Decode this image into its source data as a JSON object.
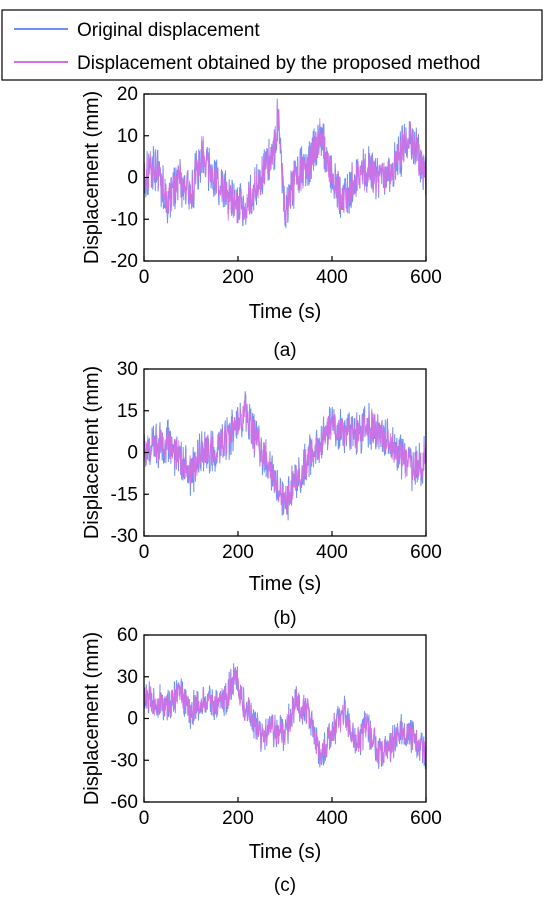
{
  "legend": {
    "entries": [
      {
        "label": "Original displacement",
        "color": "#6f8ff5"
      },
      {
        "label": "Displacement obtained by the proposed method",
        "color": "#d66fe3"
      }
    ]
  },
  "chart_data": [
    {
      "type": "line",
      "panel_label": "(a)",
      "xlabel": "Time (s)",
      "ylabel": "Displacement (mm)",
      "xlim": [
        0,
        600
      ],
      "ylim": [
        -20,
        20
      ],
      "xticks": [
        0,
        200,
        400,
        600
      ],
      "yticks": [
        -20,
        -10,
        0,
        10,
        20
      ],
      "grid": false,
      "x": [
        0,
        25,
        50,
        75,
        100,
        125,
        150,
        175,
        200,
        225,
        250,
        275,
        285,
        300,
        325,
        350,
        375,
        400,
        425,
        450,
        475,
        500,
        525,
        550,
        565,
        575,
        600
      ],
      "series": [
        {
          "name": "Original displacement",
          "color": "#6f8ff5",
          "noise": 5.0,
          "values": [
            0,
            3,
            -6,
            0,
            -4,
            6,
            0,
            -5,
            -8,
            -5,
            0,
            6,
            14,
            -8,
            0,
            3,
            10,
            0,
            -6,
            0,
            2,
            -1,
            0,
            7,
            10,
            8,
            0
          ]
        },
        {
          "name": "Displacement obtained by the proposed method",
          "color": "#d66fe3",
          "noise": 4.0,
          "values": [
            0,
            3,
            -6,
            0,
            -4,
            6,
            0,
            -5,
            -8,
            -5,
            0,
            6,
            14,
            -8,
            0,
            3,
            10,
            0,
            -6,
            0,
            2,
            -1,
            0,
            7,
            10,
            8,
            0
          ]
        }
      ]
    },
    {
      "type": "line",
      "panel_label": "(b)",
      "xlabel": "Time (s)",
      "ylabel": "Displacement (mm)",
      "xlim": [
        0,
        600
      ],
      "ylim": [
        -30,
        30
      ],
      "xticks": [
        0,
        200,
        400,
        600
      ],
      "yticks": [
        -30,
        -15,
        0,
        15,
        30
      ],
      "grid": false,
      "x": [
        0,
        25,
        50,
        75,
        100,
        125,
        150,
        175,
        200,
        215,
        225,
        250,
        275,
        290,
        300,
        325,
        350,
        375,
        400,
        425,
        450,
        475,
        500,
        525,
        550,
        575,
        600
      ],
      "series": [
        {
          "name": "Original displacement",
          "color": "#6f8ff5",
          "noise": 7.0,
          "values": [
            0,
            2,
            4,
            -2,
            -8,
            2,
            0,
            5,
            10,
            16,
            10,
            0,
            -8,
            -15,
            -18,
            -10,
            -2,
            3,
            10,
            8,
            6,
            10,
            8,
            3,
            -2,
            -6,
            -2
          ]
        },
        {
          "name": "Displacement obtained by the proposed method",
          "color": "#d66fe3",
          "noise": 5.5,
          "values": [
            0,
            2,
            4,
            -2,
            -8,
            2,
            0,
            5,
            10,
            16,
            10,
            0,
            -8,
            -15,
            -18,
            -10,
            -2,
            3,
            10,
            8,
            6,
            10,
            8,
            3,
            -2,
            -6,
            -2
          ]
        }
      ]
    },
    {
      "type": "line",
      "panel_label": "(c)",
      "xlabel": "Time (s)",
      "ylabel": "Displacement (mm)",
      "xlim": [
        0,
        600
      ],
      "ylim": [
        -60,
        60
      ],
      "xticks": [
        0,
        200,
        400,
        600
      ],
      "yticks": [
        -60,
        -30,
        0,
        30,
        60
      ],
      "grid": false,
      "x": [
        0,
        25,
        50,
        75,
        100,
        125,
        150,
        175,
        195,
        210,
        225,
        250,
        275,
        300,
        325,
        350,
        375,
        400,
        425,
        450,
        475,
        500,
        525,
        550,
        575,
        600
      ],
      "series": [
        {
          "name": "Original displacement",
          "color": "#6f8ff5",
          "noise": 11.0,
          "values": [
            15,
            12,
            8,
            18,
            5,
            12,
            10,
            15,
            32,
            10,
            5,
            -15,
            -8,
            -10,
            12,
            5,
            -28,
            -10,
            5,
            -20,
            -5,
            -25,
            -20,
            -8,
            -15,
            -25
          ]
        },
        {
          "name": "Displacement obtained by the proposed method",
          "color": "#d66fe3",
          "noise": 9.0,
          "values": [
            15,
            12,
            8,
            18,
            5,
            12,
            10,
            15,
            32,
            10,
            5,
            -15,
            -8,
            -10,
            12,
            5,
            -28,
            -10,
            5,
            -20,
            -5,
            -25,
            -20,
            -8,
            -15,
            -25
          ]
        }
      ]
    }
  ]
}
